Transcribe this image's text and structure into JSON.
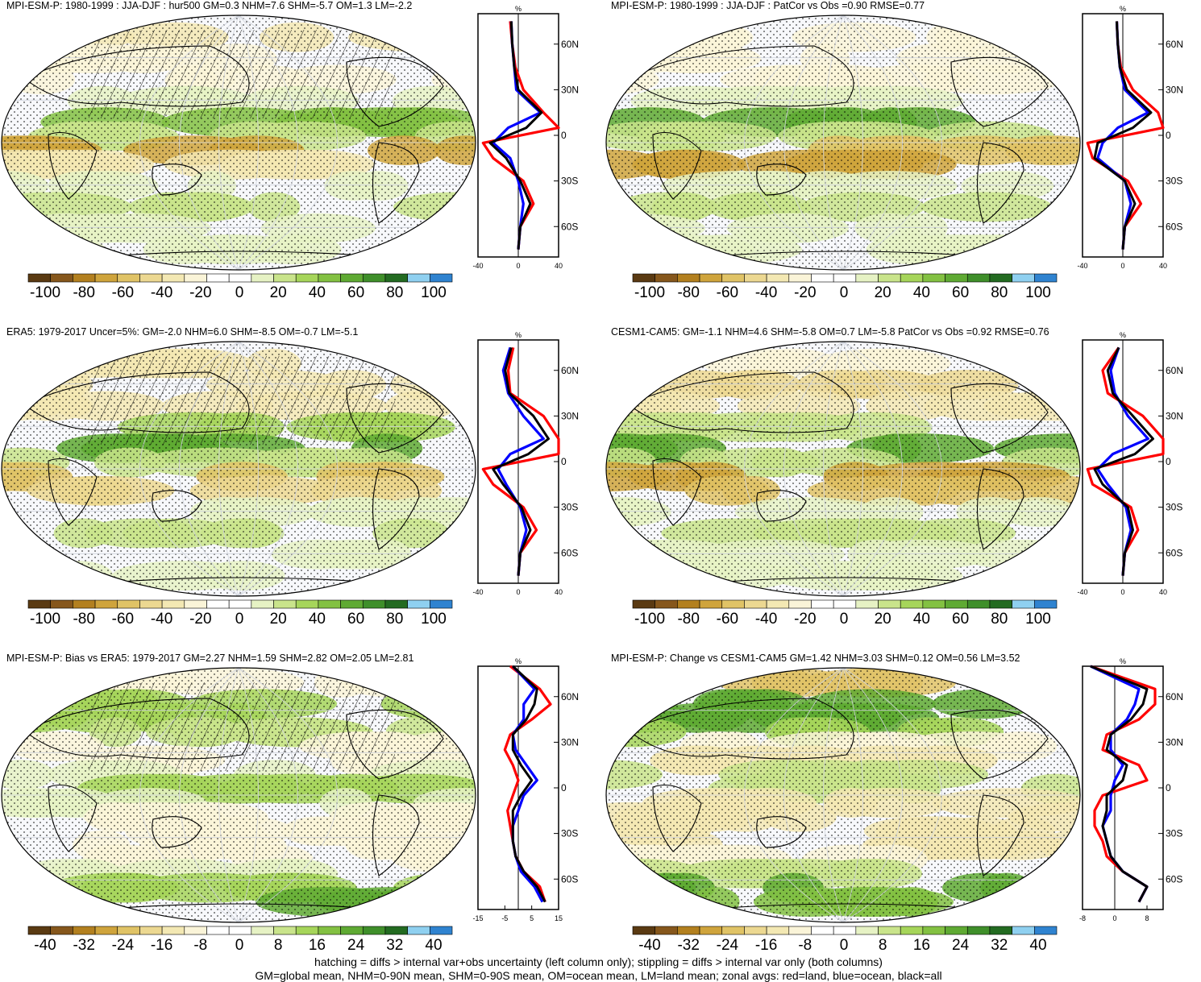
{
  "colors": {
    "land": "#ff0000",
    "ocean": "#0000ff",
    "all": "#000000",
    "hatch": "#000000",
    "stipple": "#000000",
    "colorbar": [
      "#5a3a12",
      "#86571c",
      "#b3801f",
      "#cfa43c",
      "#e0c366",
      "#ecd891",
      "#f3e8b3",
      "#faf4d8",
      "#ffffff",
      "#ffffff",
      "#e6f2c4",
      "#c9e48b",
      "#a6d55a",
      "#83c142",
      "#5faa33",
      "#3f8f2a",
      "#236b21",
      "#8fd0f0",
      "#2f83d0"
    ]
  },
  "colorbar_labels_a": [
    "-100",
    "-80",
    "-60",
    "-40",
    "-20",
    "0",
    "20",
    "40",
    "60",
    "80",
    "100"
  ],
  "colorbar_labels_b": [
    "-40",
    "-32",
    "-24",
    "-16",
    "-8",
    "0",
    "8",
    "16",
    "24",
    "32",
    "40"
  ],
  "panels": [
    {
      "title": "MPI-ESM-P: 1980-1999 : JJA-DJF : hur500 GM=0.3 NHM=7.6 SHM=-5.7 OM=1.3 LM=-2.2",
      "zonal_unit": "%",
      "x_ticks": [
        "-40",
        "0",
        "40"
      ],
      "xlim": [
        -40,
        40
      ]
    },
    {
      "title": "MPI-ESM-P: 1980-1999 : JJA-DJF : PatCor vs Obs =0.90 RMSE=0.77",
      "zonal_unit": "%",
      "x_ticks": [
        "-40",
        "0",
        "40"
      ],
      "xlim": [
        -40,
        40
      ]
    },
    {
      "title": "ERA5: 1979-2017 Uncer=5%: GM=-2.0 NHM=6.0 SHM=-8.5 OM=-0.7 LM=-5.1",
      "zonal_unit": "%",
      "x_ticks": [
        "-40",
        "0",
        "40"
      ],
      "xlim": [
        -40,
        40
      ]
    },
    {
      "title": "CESM1-CAM5: GM=-1.1 NHM=4.6 SHM=-5.8 OM=0.7 LM=-5.8 PatCor vs Obs =0.92 RMSE=0.76",
      "zonal_unit": "%",
      "x_ticks": [
        "-40",
        "0",
        "40"
      ],
      "xlim": [
        -40,
        40
      ]
    },
    {
      "title": "MPI-ESM-P: Bias vs ERA5: 1979-2017 GM=2.27 NHM=1.59 SHM=2.82 OM=2.05 LM=2.81",
      "zonal_unit": "%",
      "x_ticks": [
        "-15",
        "-5",
        "5",
        "15"
      ],
      "xlim": [
        -15,
        15
      ]
    },
    {
      "title": "MPI-ESM-P: Change vs CESM1-CAM5 GM=1.42 NHM=3.03 SHM=0.12 OM=0.56 LM=3.52",
      "zonal_unit": "%",
      "x_ticks": [
        "-8",
        "0",
        "8"
      ],
      "xlim": [
        -8,
        12
      ]
    }
  ],
  "lat_ticks": [
    "60N",
    "30N",
    "0",
    "30S",
    "60S"
  ],
  "footer": {
    "line1": "hatching = diffs > internal var+obs uncertainty (left column only); stippling = diffs > internal var only (both columns)",
    "line2": "GM=global mean, NHM=0-90N mean, SHM=0-90S mean, OM=ocean mean, LM=land mean; zonal avgs: red=land, blue=ocean, black=all"
  },
  "chart_data": [
    {
      "type": "line",
      "title": "MPI-ESM-P: 1980-1999 : JJA-DJF : hur500 GM=0.3 NHM=7.6 SHM=-5.7 OM=1.3 LM=-2.2",
      "xlabel": "%",
      "ylabel": "",
      "xlim": [
        -40,
        40
      ],
      "ylim": [
        -80,
        80
      ],
      "y": [
        75,
        60,
        45,
        30,
        15,
        5,
        -5,
        -15,
        -30,
        -45,
        -60,
        -75
      ],
      "series": [
        {
          "name": "land",
          "values": [
            -8,
            -6,
            -3,
            5,
            25,
            40,
            -35,
            -25,
            5,
            15,
            2,
            0
          ]
        },
        {
          "name": "ocean",
          "values": [
            -7,
            -6,
            -4,
            -2,
            22,
            -10,
            -25,
            -8,
            0,
            5,
            2,
            0
          ]
        },
        {
          "name": "all",
          "values": [
            -7,
            -6,
            -4,
            0,
            23,
            8,
            -28,
            -12,
            2,
            12,
            2,
            0
          ]
        }
      ]
    },
    {
      "type": "line",
      "title": "MPI-ESM-P: 1980-1999 : JJA-DJF : PatCor vs Obs =0.90 RMSE=0.77",
      "xlabel": "%",
      "ylabel": "",
      "xlim": [
        -40,
        40
      ],
      "ylim": [
        -80,
        80
      ],
      "y": [
        75,
        60,
        45,
        30,
        15,
        5,
        -5,
        -15,
        -30,
        -45,
        -60,
        -75
      ],
      "series": [
        {
          "name": "land",
          "values": [
            -6,
            -5,
            -2,
            10,
            35,
            40,
            -35,
            -30,
            5,
            18,
            2,
            0
          ]
        },
        {
          "name": "ocean",
          "values": [
            -6,
            -5,
            -3,
            2,
            25,
            -5,
            -20,
            -25,
            2,
            8,
            2,
            0
          ]
        },
        {
          "name": "all",
          "values": [
            -6,
            -5,
            -3,
            4,
            28,
            10,
            -25,
            -28,
            2,
            12,
            2,
            0
          ]
        }
      ]
    },
    {
      "type": "line",
      "title": "ERA5: 1979-2017 Uncer=5%: GM=-2.0 NHM=6.0 SHM=-8.5 OM=-0.7 LM=-5.1",
      "xlabel": "%",
      "ylabel": "",
      "xlim": [
        -40,
        40
      ],
      "ylim": [
        -80,
        80
      ],
      "y": [
        75,
        60,
        45,
        30,
        15,
        5,
        -5,
        -15,
        -30,
        -45,
        -60,
        -75
      ],
      "series": [
        {
          "name": "land",
          "values": [
            -5,
            -10,
            -8,
            25,
            40,
            42,
            -35,
            -25,
            5,
            18,
            2,
            0
          ]
        },
        {
          "name": "ocean",
          "values": [
            -8,
            -15,
            -10,
            5,
            25,
            -8,
            -20,
            -12,
            2,
            8,
            2,
            0
          ]
        },
        {
          "name": "all",
          "values": [
            -7,
            -13,
            -9,
            15,
            30,
            10,
            -25,
            -15,
            3,
            12,
            2,
            0
          ]
        }
      ]
    },
    {
      "type": "line",
      "title": "CESM1-CAM5: GM=-1.1 NHM=4.6 SHM=-5.8 OM=0.7 LM=-5.8 PatCor vs Obs =0.92 RMSE=0.76",
      "xlabel": "%",
      "ylabel": "",
      "xlim": [
        -40,
        40
      ],
      "ylim": [
        -80,
        80
      ],
      "y": [
        75,
        60,
        45,
        30,
        15,
        5,
        -5,
        -15,
        -30,
        -45,
        -60,
        -75
      ],
      "series": [
        {
          "name": "land",
          "values": [
            -4,
            -20,
            -15,
            20,
            40,
            42,
            -35,
            -30,
            8,
            15,
            2,
            0
          ]
        },
        {
          "name": "ocean",
          "values": [
            -4,
            -12,
            -8,
            5,
            25,
            -10,
            -25,
            -15,
            3,
            8,
            2,
            0
          ]
        },
        {
          "name": "all",
          "values": [
            -4,
            -15,
            -10,
            10,
            30,
            12,
            -28,
            -20,
            5,
            10,
            2,
            0
          ]
        }
      ]
    },
    {
      "type": "line",
      "title": "MPI-ESM-P: Bias vs ERA5: 1979-2017 GM=2.27 NHM=1.59 SHM=2.82 OM=2.05 LM=2.81",
      "xlabel": "%",
      "ylabel": "",
      "xlim": [
        -15,
        15
      ],
      "ylim": [
        -80,
        80
      ],
      "y": [
        80,
        65,
        55,
        45,
        35,
        25,
        15,
        5,
        -5,
        -15,
        -25,
        -35,
        -45,
        -55,
        -65,
        -75
      ],
      "series": [
        {
          "name": "land",
          "values": [
            -3,
            8,
            12,
            5,
            -3,
            -5,
            -2,
            0,
            -2,
            -4,
            -3,
            -2,
            -1,
            2,
            8,
            10
          ]
        },
        {
          "name": "ocean",
          "values": [
            -2,
            6,
            2,
            2,
            -2,
            -1,
            3,
            7,
            2,
            0,
            -2,
            -2,
            -1,
            1,
            6,
            9
          ]
        },
        {
          "name": "all",
          "values": [
            -2,
            7,
            6,
            3,
            -2,
            -2,
            1,
            5,
            1,
            -2,
            -2,
            -2,
            -1,
            2,
            7,
            10
          ]
        }
      ]
    },
    {
      "type": "line",
      "title": "MPI-ESM-P: Change vs CESM1-CAM5 GM=1.42 NHM=3.03 SHM=0.12 OM=0.56 LM=3.52",
      "xlabel": "%",
      "ylabel": "",
      "xlim": [
        -8,
        12
      ],
      "ylim": [
        -80,
        80
      ],
      "y": [
        80,
        65,
        55,
        45,
        35,
        25,
        15,
        5,
        -5,
        -15,
        -25,
        -35,
        -45,
        -55,
        -65,
        -75
      ],
      "series": [
        {
          "name": "land",
          "values": [
            -6,
            10,
            10,
            6,
            -2,
            -3,
            6,
            8,
            -3,
            -5,
            -5,
            -3,
            -2,
            2,
            8,
            6
          ]
        },
        {
          "name": "ocean",
          "values": [
            -6,
            6,
            5,
            3,
            -1,
            -1,
            2,
            0,
            -1,
            -1,
            -3,
            -2,
            -1,
            2,
            8,
            6
          ]
        },
        {
          "name": "all",
          "values": [
            -6,
            8,
            7,
            4,
            -1,
            -2,
            3,
            2,
            -2,
            -2,
            -3,
            -2,
            -1,
            2,
            8,
            6
          ]
        }
      ]
    }
  ]
}
